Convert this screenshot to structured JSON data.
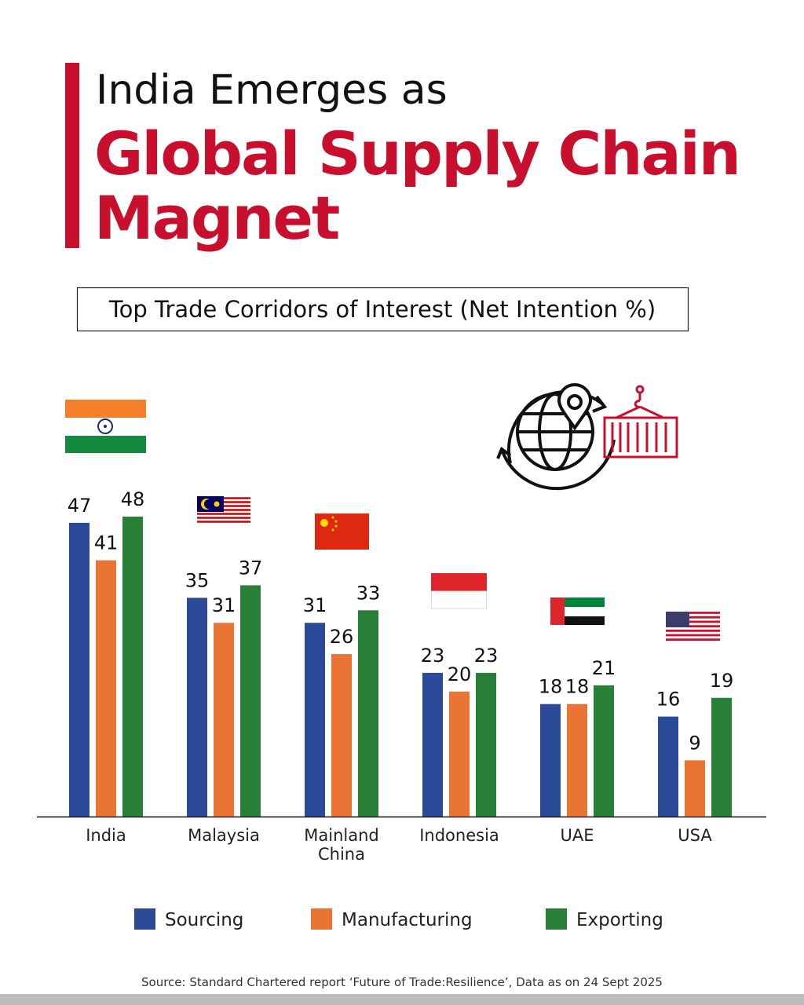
{
  "chart_data": {
    "type": "bar",
    "title": {
      "lead": "India Emerges as",
      "emphasis": [
        "Global Supply Chain",
        "Magnet"
      ]
    },
    "subtitle": "Top Trade Corridors of Interest (Net Intention %)",
    "categories": [
      "India",
      "Malaysia",
      "Mainland China",
      "Indonesia",
      "UAE",
      "USA"
    ],
    "series": [
      {
        "name": "Sourcing",
        "color": "#2b4a98",
        "values": [
          47,
          35,
          31,
          23,
          18,
          16
        ]
      },
      {
        "name": "Manufacturing",
        "color": "#ea7433",
        "values": [
          41,
          31,
          26,
          20,
          18,
          9
        ]
      },
      {
        "name": "Exporting",
        "color": "#2a7f36",
        "values": [
          48,
          37,
          33,
          23,
          21,
          19
        ]
      }
    ],
    "source": "Source: Standard Chartered report ‘Future of Trade:Resilience’, Data as on 24 Sept 2025"
  }
}
